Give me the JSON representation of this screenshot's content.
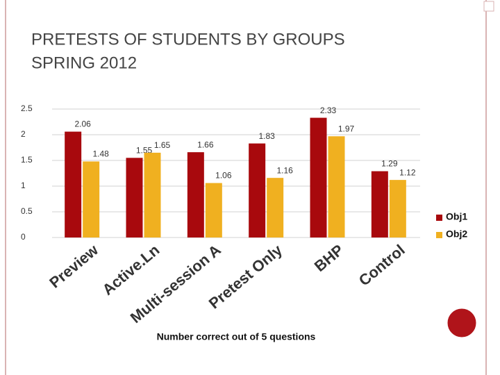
{
  "chart_data": {
    "type": "bar",
    "title": "PRETESTS OF STUDENTS BY GROUPS",
    "subtitle": "SPRING 2012",
    "x_label": "Number correct out of 5 questions",
    "categories": [
      "Preview",
      "Active.Ln",
      "Multi-session A",
      "Pretest Only",
      "BHP",
      "Control"
    ],
    "series": [
      {
        "name": "Obj1",
        "color": "#a8090d",
        "values": [
          2.06,
          1.55,
          1.66,
          1.83,
          2.33,
          1.29
        ]
      },
      {
        "name": "Obj2",
        "color": "#f0b020",
        "values": [
          1.48,
          1.65,
          1.06,
          1.16,
          1.97,
          1.12
        ]
      }
    ],
    "ylim": [
      0,
      2.5
    ],
    "yticks": [
      0,
      0.5,
      1,
      1.5,
      2,
      2.5
    ],
    "grid": true,
    "legend": "right"
  }
}
